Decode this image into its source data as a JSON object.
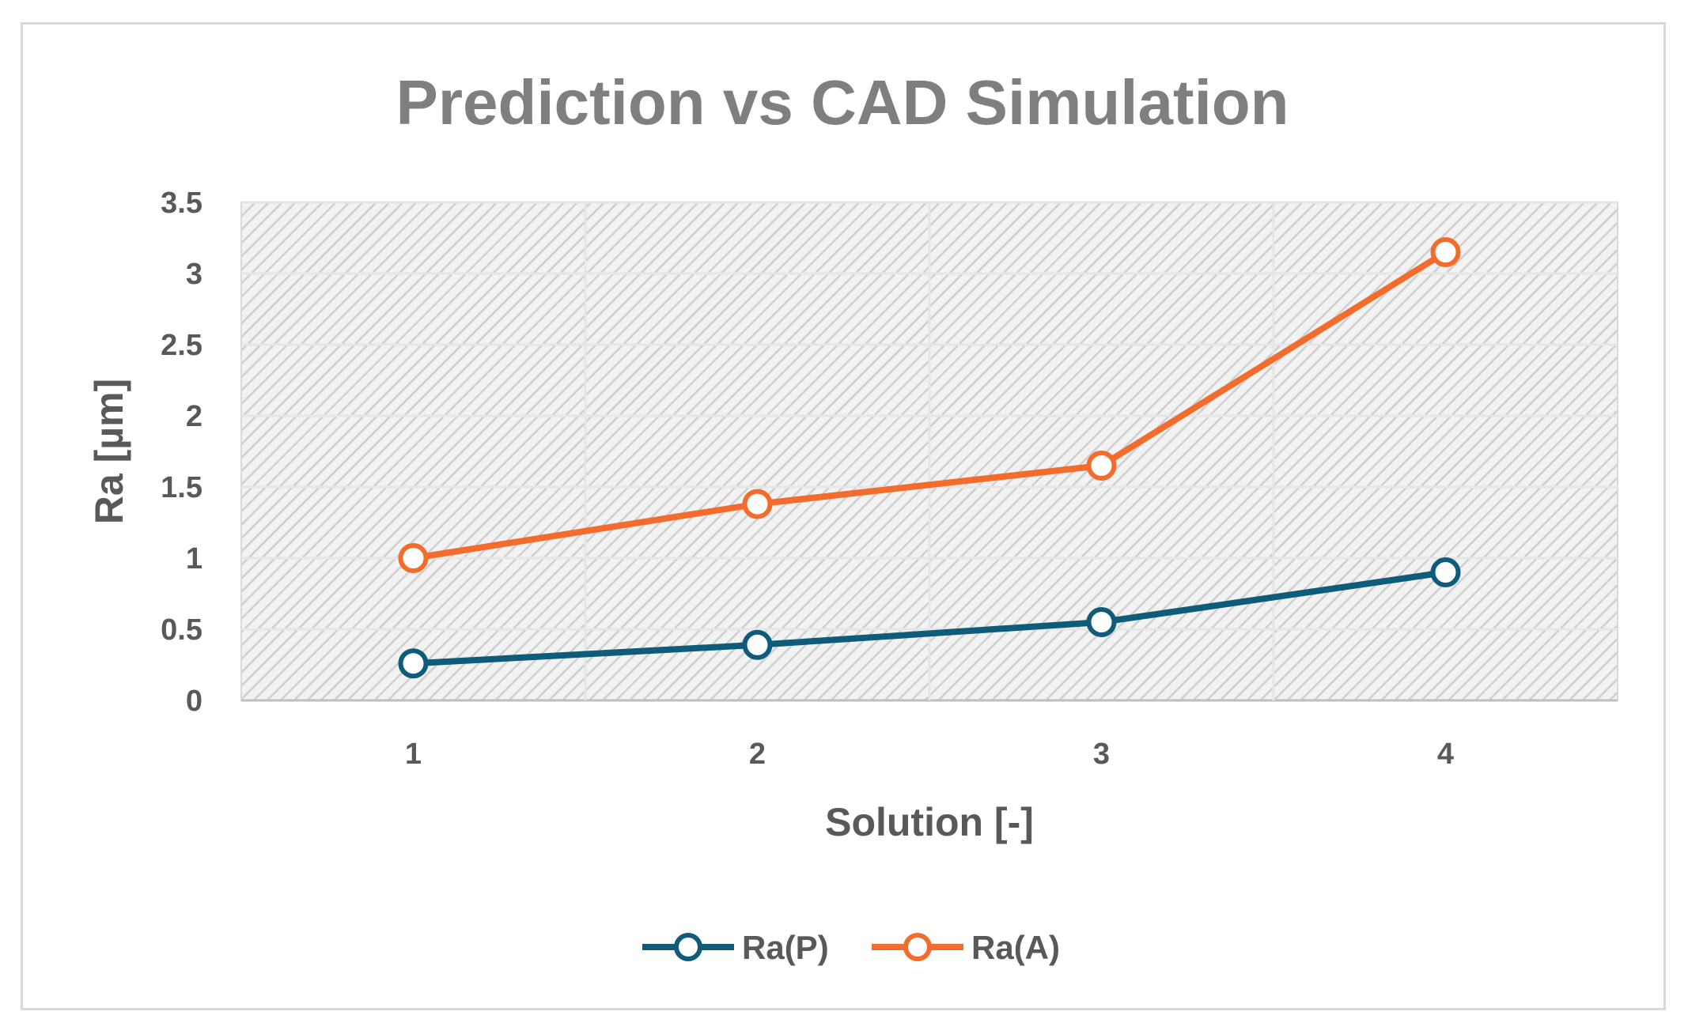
{
  "chart_data": {
    "type": "line",
    "title": "Prediction vs CAD Simulation",
    "xlabel": "Solution [-]",
    "ylabel": "Ra [µm]",
    "categories": [
      "1",
      "2",
      "3",
      "4"
    ],
    "ylim": [
      0,
      3.5
    ],
    "yticks": [
      "0",
      "0.5",
      "1",
      "1.5",
      "2",
      "2.5",
      "3",
      "3.5"
    ],
    "grid": true,
    "legend_position": "bottom",
    "series": [
      {
        "name": "Ra(P)",
        "color": "#0f5c7a",
        "values": [
          0.26,
          0.39,
          0.55,
          0.9
        ]
      },
      {
        "name": "Ra(A)",
        "color": "#f26d2d",
        "values": [
          1.0,
          1.38,
          1.65,
          3.15
        ]
      }
    ]
  }
}
